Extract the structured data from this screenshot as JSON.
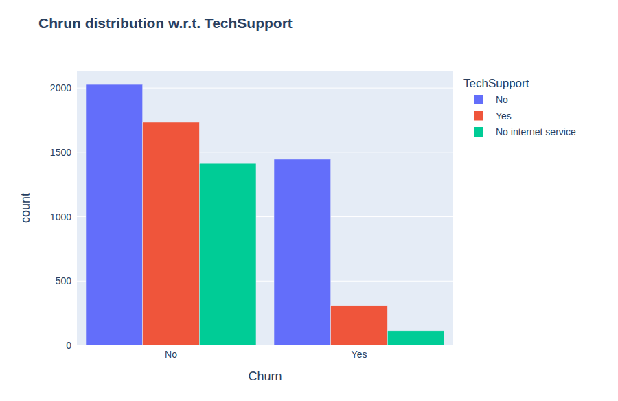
{
  "chart_data": {
    "type": "bar",
    "title": "Chrun distribution w.r.t. TechSupport",
    "x_label": "Churn",
    "y_label": "count",
    "categories": [
      "No",
      "Yes"
    ],
    "series": [
      {
        "name": "No",
        "color": "#636efa",
        "values": [
          2027,
          1446
        ]
      },
      {
        "name": "Yes",
        "color": "#EF553B",
        "values": [
          1734,
          310
        ]
      },
      {
        "name": "No internet service",
        "color": "#00cc96",
        "values": [
          1413,
          113
        ]
      }
    ],
    "ylim": [
      0,
      2134
    ],
    "yticks": [
      0,
      500,
      1000,
      1500,
      2000
    ],
    "grid": true,
    "legend": "right",
    "legend_title": "TechSupport"
  }
}
